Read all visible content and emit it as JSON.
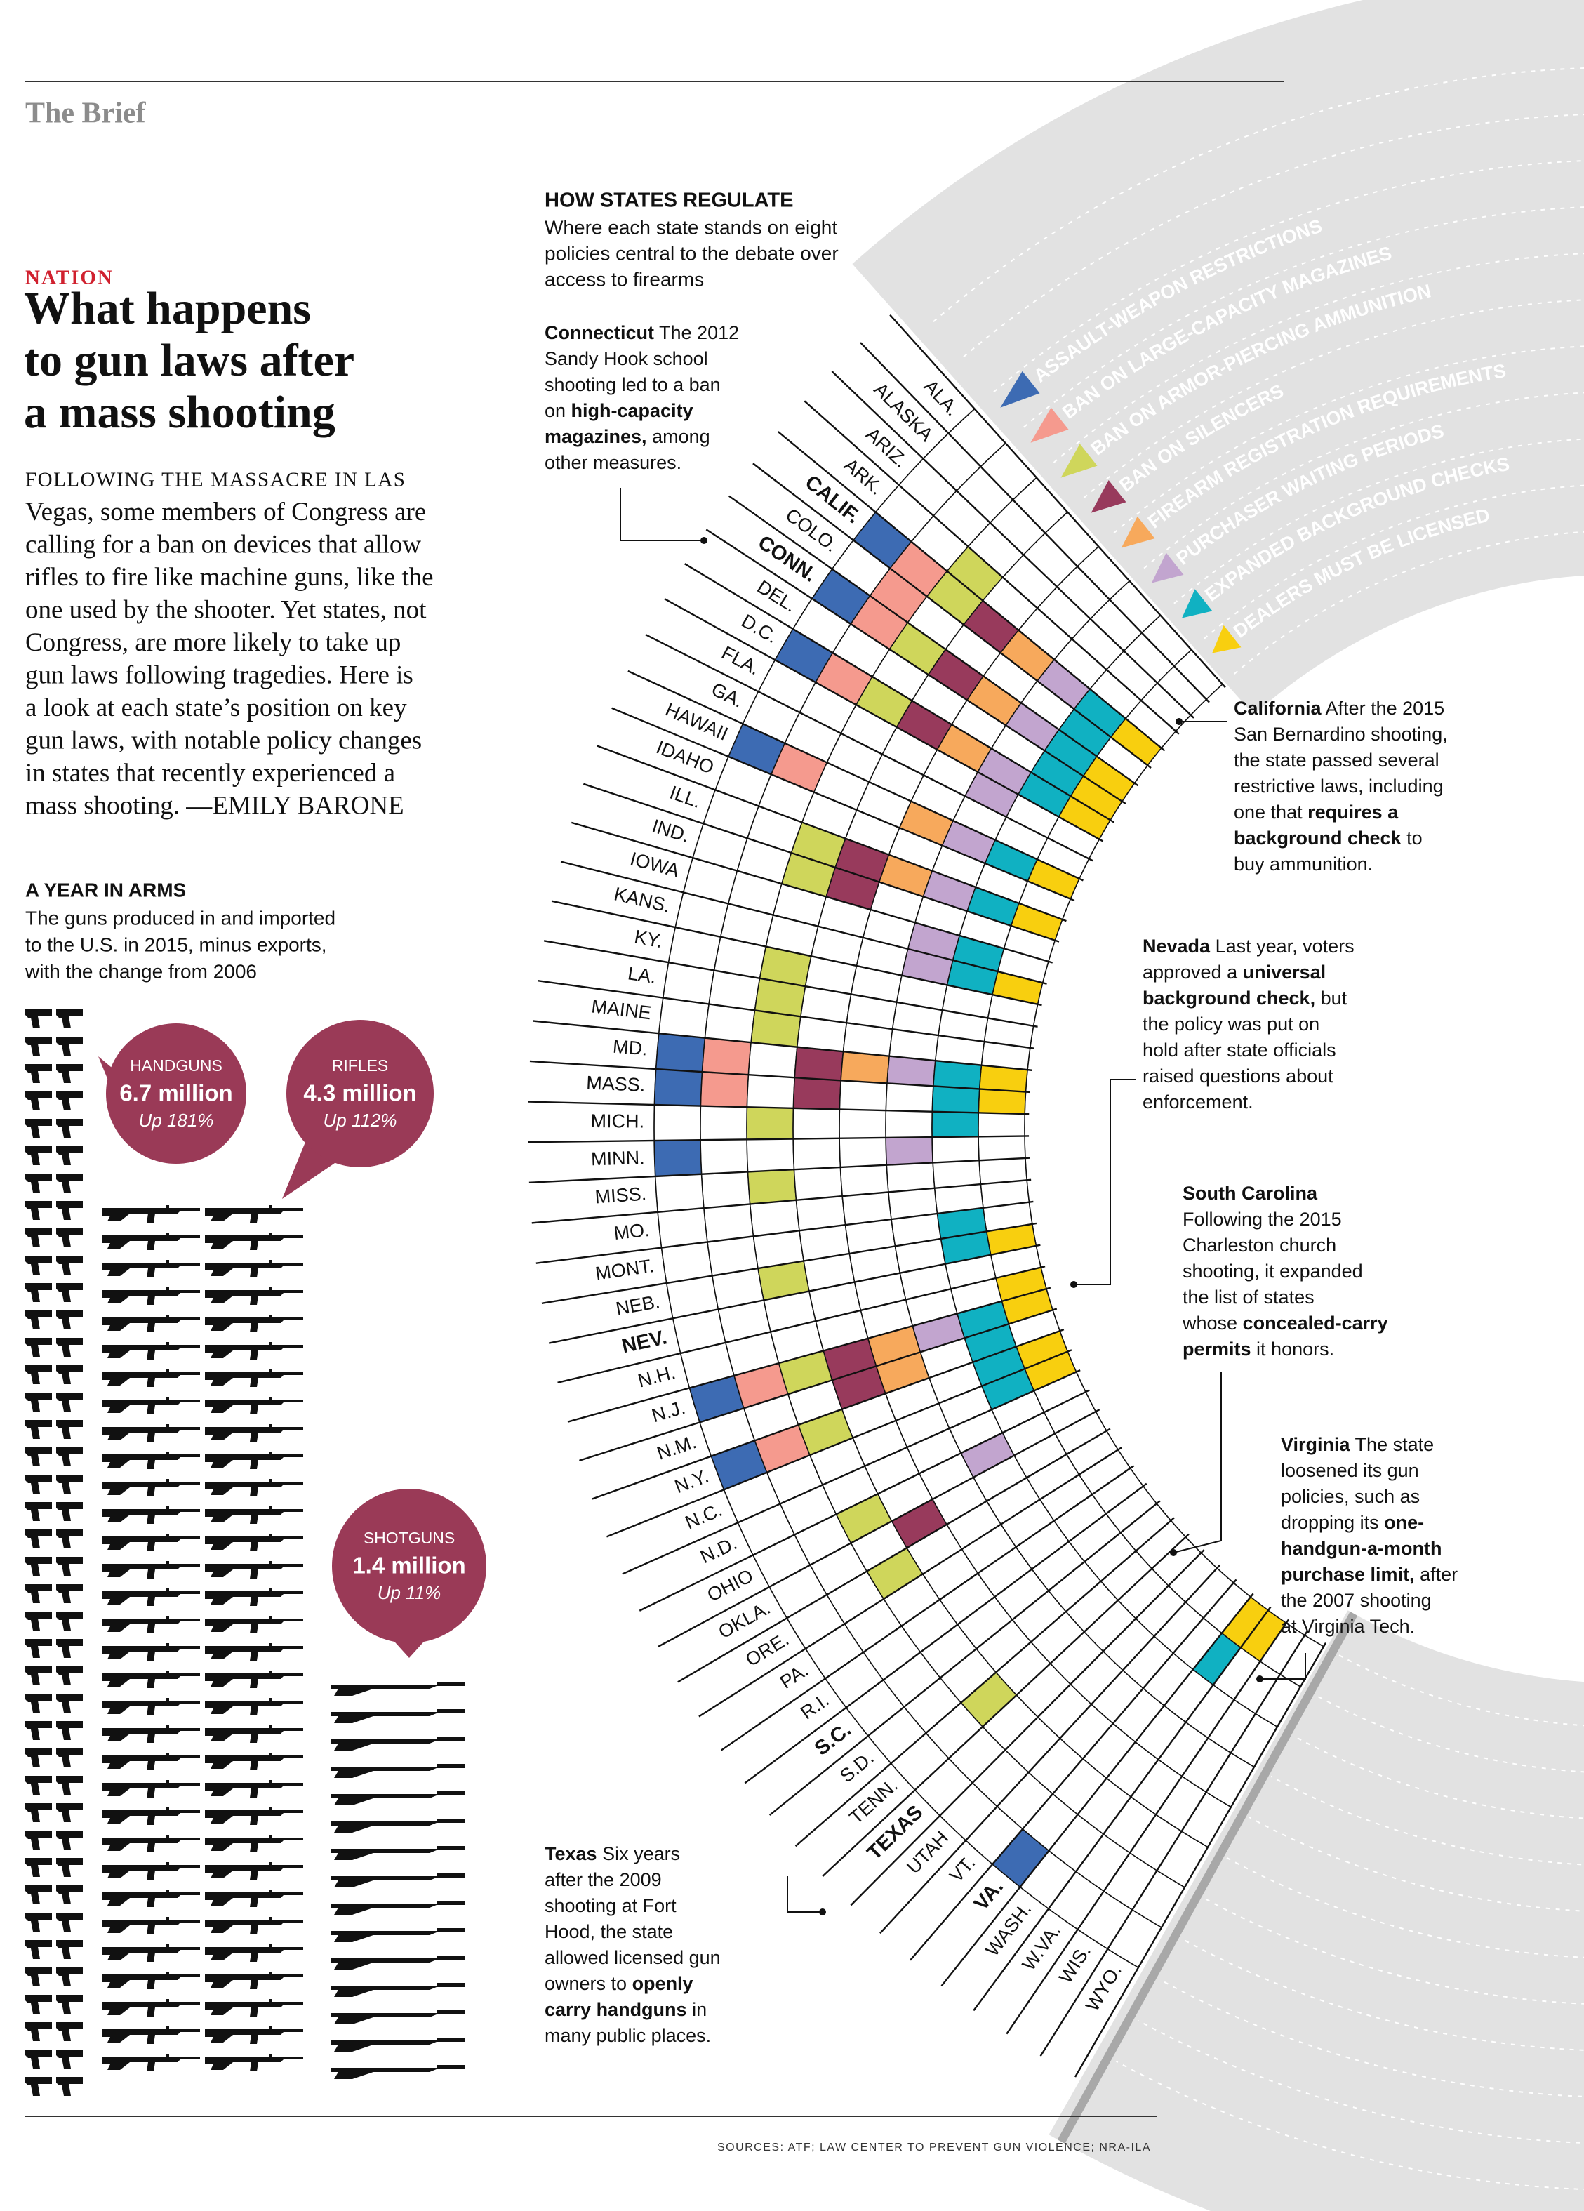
{
  "header": {
    "section_label": "The Brief"
  },
  "article": {
    "kicker": "NATION",
    "headline_lines": [
      "What happens",
      "to gun laws after",
      "a mass shooting"
    ],
    "body_lines": [
      "FOLLOWING THE MASSACRE IN LAS",
      "Vegas, some members of Congress are",
      "calling for a ban on devices that allow",
      "rifles to fire like machine guns, like the",
      "one used by the shooter. Yet states, not",
      "Congress, are more likely to take up",
      "gun laws following tragedies. Here is",
      "a look at each state’s position on key",
      "gun laws, with notable policy changes",
      "in states that recently experienced a",
      "mass shooting. —EMILY BARONE"
    ]
  },
  "year_in_arms": {
    "title": "A YEAR IN ARMS",
    "subtitle_lines": [
      "The guns produced in and imported",
      "to the U.S. in 2015, minus exports,",
      "with the change from 2006"
    ],
    "bubbles": [
      {
        "label": "HANDGUNS",
        "amount": "6.7 million",
        "change": "Up 181%"
      },
      {
        "label": "RIFLES",
        "amount": "4.3 million",
        "change": "Up 112%"
      },
      {
        "label": "SHOTGUNS",
        "amount": "1.4 million",
        "change": "Up 11%"
      }
    ]
  },
  "regulation": {
    "title": "HOW STATES REGULATE",
    "subtitle_lines": [
      "Where each state stands on eight",
      "policies central to the debate over",
      "access to firearms"
    ],
    "policies": [
      {
        "name": "ASSAULT-WEAPON RESTRICTIONS",
        "color": "#3d6bb3"
      },
      {
        "name": "BAN ON LARGE-CAPACITY MAGAZINES",
        "color": "#f59a8e"
      },
      {
        "name": "BAN ON ARMOR-PIERCING AMMUNITION",
        "color": "#cfd65b"
      },
      {
        "name": "BAN ON SILENCERS",
        "color": "#983a5c"
      },
      {
        "name": "FIREARM REGISTRATION REQUIREMENTS",
        "color": "#f7a95c"
      },
      {
        "name": "PURCHASER WAITING PERIODS",
        "color": "#c2a5cf"
      },
      {
        "name": "EXPANDED BACKGROUND CHECKS",
        "color": "#10b1c2"
      },
      {
        "name": "DEALERS MUST BE LICENSED",
        "color": "#f8cf0f"
      }
    ],
    "states": [
      {
        "name": "ALA.",
        "policies": [
          0,
          0,
          0,
          0,
          0,
          0,
          0,
          0
        ]
      },
      {
        "name": "ALASKA",
        "policies": [
          0,
          0,
          0,
          0,
          0,
          0,
          0,
          0
        ]
      },
      {
        "name": "ARIZ.",
        "policies": [
          0,
          0,
          0,
          0,
          0,
          0,
          0,
          0
        ]
      },
      {
        "name": "ARK.",
        "policies": [
          0,
          0,
          1,
          0,
          0,
          0,
          0,
          0
        ]
      },
      {
        "name": "CALIF.",
        "bold": true,
        "policies": [
          1,
          1,
          1,
          1,
          1,
          1,
          1,
          1
        ]
      },
      {
        "name": "COLO.",
        "policies": [
          0,
          1,
          0,
          0,
          0,
          0,
          1,
          0
        ]
      },
      {
        "name": "CONN.",
        "bold": true,
        "policies": [
          1,
          1,
          1,
          1,
          1,
          1,
          1,
          1
        ]
      },
      {
        "name": "DEL.",
        "policies": [
          0,
          0,
          0,
          0,
          0,
          0,
          1,
          1
        ]
      },
      {
        "name": "D.C.",
        "policies": [
          1,
          1,
          1,
          1,
          1,
          1,
          1,
          1
        ]
      },
      {
        "name": "FLA.",
        "policies": [
          0,
          0,
          0,
          0,
          0,
          1,
          0,
          0
        ]
      },
      {
        "name": "GA.",
        "policies": [
          0,
          0,
          0,
          0,
          0,
          0,
          0,
          0
        ]
      },
      {
        "name": "HAWAII",
        "policies": [
          1,
          1,
          0,
          0,
          1,
          1,
          1,
          1
        ]
      },
      {
        "name": "IDAHO",
        "policies": [
          0,
          0,
          0,
          0,
          0,
          0,
          0,
          0
        ]
      },
      {
        "name": "ILL.",
        "policies": [
          0,
          0,
          1,
          1,
          1,
          1,
          1,
          1
        ]
      },
      {
        "name": "IND.",
        "policies": [
          0,
          0,
          1,
          1,
          0,
          0,
          0,
          0
        ]
      },
      {
        "name": "IOWA",
        "policies": [
          0,
          0,
          0,
          0,
          0,
          1,
          1,
          0
        ]
      },
      {
        "name": "KANS.",
        "policies": [
          0,
          0,
          0,
          0,
          0,
          1,
          1,
          1
        ]
      },
      {
        "name": "KY.",
        "policies": [
          0,
          0,
          1,
          0,
          0,
          0,
          0,
          0
        ]
      },
      {
        "name": "LA.",
        "policies": [
          0,
          0,
          1,
          0,
          0,
          0,
          0,
          0
        ]
      },
      {
        "name": "MAINE",
        "policies": [
          0,
          0,
          1,
          0,
          0,
          0,
          0,
          0
        ]
      },
      {
        "name": "MD.",
        "policies": [
          1,
          1,
          0,
          1,
          1,
          1,
          1,
          1
        ]
      },
      {
        "name": "MASS.",
        "policies": [
          1,
          1,
          0,
          1,
          0,
          0,
          1,
          1
        ]
      },
      {
        "name": "MICH.",
        "policies": [
          0,
          0,
          1,
          0,
          0,
          0,
          1,
          0
        ]
      },
      {
        "name": "MINN.",
        "policies": [
          1,
          0,
          0,
          0,
          0,
          1,
          0,
          0
        ]
      },
      {
        "name": "MISS.",
        "policies": [
          0,
          0,
          1,
          0,
          0,
          0,
          0,
          0
        ]
      },
      {
        "name": "MO.",
        "policies": [
          0,
          0,
          0,
          0,
          0,
          0,
          0,
          0
        ]
      },
      {
        "name": "MONT.",
        "policies": [
          0,
          0,
          0,
          0,
          0,
          0,
          1,
          0
        ]
      },
      {
        "name": "NEB.",
        "policies": [
          0,
          0,
          1,
          0,
          0,
          0,
          1,
          1
        ]
      },
      {
        "name": "NEV.",
        "bold": true,
        "policies": [
          0,
          0,
          0,
          0,
          0,
          0,
          0,
          0
        ]
      },
      {
        "name": "N.H.",
        "policies": [
          0,
          0,
          0,
          0,
          0,
          0,
          0,
          1
        ]
      },
      {
        "name": "N.J.",
        "policies": [
          1,
          1,
          1,
          1,
          1,
          1,
          1,
          1
        ]
      },
      {
        "name": "N.M.",
        "policies": [
          0,
          0,
          0,
          1,
          1,
          0,
          1,
          0
        ]
      },
      {
        "name": "N.Y.",
        "policies": [
          1,
          1,
          1,
          0,
          0,
          0,
          1,
          1
        ]
      },
      {
        "name": "N.C.",
        "policies": [
          0,
          0,
          0,
          0,
          0,
          0,
          1,
          1
        ]
      },
      {
        "name": "N.D.",
        "policies": [
          0,
          0,
          0,
          0,
          0,
          0,
          0,
          0
        ]
      },
      {
        "name": "OHIO",
        "policies": [
          0,
          0,
          1,
          0,
          0,
          1,
          0,
          0
        ]
      },
      {
        "name": "OKLA.",
        "policies": [
          0,
          0,
          0,
          1,
          0,
          0,
          0,
          0
        ]
      },
      {
        "name": "ORE.",
        "policies": [
          0,
          0,
          1,
          0,
          0,
          0,
          0,
          0
        ]
      },
      {
        "name": "PA.",
        "policies": [
          0,
          0,
          0,
          0,
          0,
          0,
          0,
          0
        ]
      },
      {
        "name": "R.I.",
        "policies": [
          0,
          0,
          0,
          0,
          0,
          0,
          0,
          0
        ]
      },
      {
        "name": "S.C.",
        "bold": true,
        "policies": [
          0,
          0,
          0,
          0,
          0,
          0,
          0,
          0
        ]
      },
      {
        "name": "S.D.",
        "policies": [
          0,
          0,
          0,
          0,
          0,
          0,
          0,
          0
        ]
      },
      {
        "name": "TENN.",
        "policies": [
          0,
          0,
          1,
          0,
          0,
          0,
          0,
          0
        ]
      },
      {
        "name": "TEXAS",
        "bold": true,
        "policies": [
          0,
          0,
          0,
          0,
          0,
          0,
          0,
          0
        ]
      },
      {
        "name": "UTAH",
        "policies": [
          0,
          0,
          0,
          0,
          0,
          0,
          0,
          0
        ]
      },
      {
        "name": "VT.",
        "policies": [
          0,
          0,
          0,
          0,
          0,
          0,
          0,
          0
        ]
      },
      {
        "name": "VA.",
        "bold": true,
        "policies": [
          1,
          0,
          0,
          0,
          0,
          0,
          0,
          0
        ]
      },
      {
        "name": "WASH.",
        "policies": [
          0,
          0,
          0,
          0,
          0,
          0,
          1,
          1
        ]
      },
      {
        "name": "W.VA.",
        "policies": [
          0,
          0,
          0,
          0,
          0,
          0,
          0,
          1
        ]
      },
      {
        "name": "WIS.",
        "policies": [
          0,
          0,
          0,
          0,
          0,
          0,
          0,
          0
        ]
      },
      {
        "name": "WYO.",
        "policies": [
          0,
          0,
          0,
          0,
          0,
          0,
          0,
          0
        ]
      }
    ]
  },
  "callouts": [
    {
      "lines": [
        [
          {
            "t": "Connecticut",
            "b": true
          },
          {
            "t": " The 2012"
          }
        ],
        [
          {
            "t": "Sandy Hook school"
          }
        ],
        [
          {
            "t": "shooting led to a ban"
          }
        ],
        [
          {
            "t": "on "
          },
          {
            "t": "high-capacity",
            "b": true
          }
        ],
        [
          {
            "t": "magazines,",
            "b": true
          },
          {
            "t": " among"
          }
        ],
        [
          {
            "t": "other measures."
          }
        ]
      ]
    },
    {
      "lines": [
        [
          {
            "t": "California",
            "b": true
          },
          {
            "t": " After the 2015"
          }
        ],
        [
          {
            "t": "San Bernardino shooting,"
          }
        ],
        [
          {
            "t": "the state passed several"
          }
        ],
        [
          {
            "t": "restrictive laws, including"
          }
        ],
        [
          {
            "t": "one that "
          },
          {
            "t": "requires a",
            "b": true
          }
        ],
        [
          {
            "t": "background check",
            "b": true
          },
          {
            "t": " to"
          }
        ],
        [
          {
            "t": "buy ammunition."
          }
        ]
      ]
    },
    {
      "lines": [
        [
          {
            "t": "Nevada",
            "b": true
          },
          {
            "t": " Last year, voters"
          }
        ],
        [
          {
            "t": "approved a "
          },
          {
            "t": "universal",
            "b": true
          }
        ],
        [
          {
            "t": "background check,",
            "b": true
          },
          {
            "t": " but"
          }
        ],
        [
          {
            "t": "the policy was put on"
          }
        ],
        [
          {
            "t": "hold after state officials"
          }
        ],
        [
          {
            "t": "raised questions about"
          }
        ],
        [
          {
            "t": "enforcement."
          }
        ]
      ]
    },
    {
      "lines": [
        [
          {
            "t": "South Carolina",
            "b": true
          }
        ],
        [
          {
            "t": "Following the 2015"
          }
        ],
        [
          {
            "t": "Charleston church"
          }
        ],
        [
          {
            "t": "shooting, it expanded"
          }
        ],
        [
          {
            "t": "the list of states"
          }
        ],
        [
          {
            "t": "whose "
          },
          {
            "t": "concealed-carry",
            "b": true
          }
        ],
        [
          {
            "t": "permits",
            "b": true
          },
          {
            "t": " it honors."
          }
        ]
      ]
    },
    {
      "lines": [
        [
          {
            "t": "Virginia",
            "b": true
          },
          {
            "t": " The state"
          }
        ],
        [
          {
            "t": "loosened its gun"
          }
        ],
        [
          {
            "t": "policies, such as"
          }
        ],
        [
          {
            "t": "dropping its "
          },
          {
            "t": "one-",
            "b": true
          }
        ],
        [
          {
            "t": "handgun-a-month",
            "b": true
          }
        ],
        [
          {
            "t": "purchase limit,",
            "b": true
          },
          {
            "t": " after"
          }
        ],
        [
          {
            "t": "the 2007 shooting"
          }
        ],
        [
          {
            "t": "at Virginia Tech."
          }
        ]
      ]
    },
    {
      "lines": [
        [
          {
            "t": "Texas",
            "b": true
          },
          {
            "t": " Six years"
          }
        ],
        [
          {
            "t": "after the 2009"
          }
        ],
        [
          {
            "t": "shooting at Fort"
          }
        ],
        [
          {
            "t": "Hood, the state"
          }
        ],
        [
          {
            "t": "allowed licensed gun"
          }
        ],
        [
          {
            "t": "owners to "
          },
          {
            "t": "openly",
            "b": true
          }
        ],
        [
          {
            "t": "carry handguns",
            "b": true
          },
          {
            "t": " in"
          }
        ],
        [
          {
            "t": "many public places."
          }
        ]
      ]
    }
  ],
  "sources": "SOURCES: ATF; LAW CENTER TO PREVENT GUN VIOLENCE; NRA-ILA"
}
